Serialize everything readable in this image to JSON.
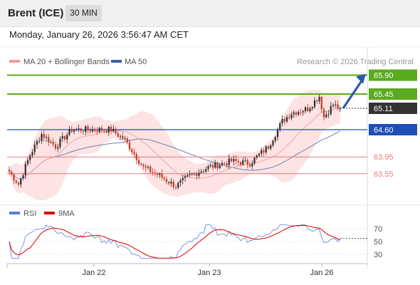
{
  "header": {
    "title": "Brent (ICE)",
    "timeframe": "30 MIN",
    "timestamp": "Monday, January 26, 2026 3:56:47 AM CET"
  },
  "legend": {
    "ma20": "MA 20 + Bollinger Bands",
    "ma50": "MA 50",
    "credit": "Research © 2026 Trading Central",
    "rsi": "RSI",
    "ma9": "9MA"
  },
  "colors": {
    "resistance": "#5aab1e",
    "support": "#1f4fb4",
    "weak": "#e77b7b",
    "candle_up": "#2e2e2e",
    "candle_down": "#c0392b",
    "bb_fill": "#fde3e3",
    "ma20": "#f0a5a5",
    "ma50": "#6b7fb3",
    "arrow": "#2a5aa8",
    "rsi": "#6f8ed8",
    "rsi_ma": "#dd1111",
    "current": "#333333"
  },
  "chart_data": [
    {
      "type": "candlestick",
      "x_ticks": [
        "Jan 22",
        "Jan 23",
        "Jan 26"
      ],
      "levels": [
        {
          "value": 65.9,
          "label": "65.90",
          "style": "resistance"
        },
        {
          "value": 65.45,
          "label": "65.45",
          "style": "resistance"
        },
        {
          "value": 65.11,
          "label": "65.11",
          "style": "current"
        },
        {
          "value": 64.6,
          "label": "64.60",
          "style": "support"
        },
        {
          "value": 63.95,
          "label": "63.95",
          "style": "weak"
        },
        {
          "value": 63.55,
          "label": "63.55",
          "style": "weak"
        }
      ],
      "close_anchors": [
        {
          "i": 0,
          "v": 63.6
        },
        {
          "i": 4,
          "v": 63.3
        },
        {
          "i": 9,
          "v": 64.0
        },
        {
          "i": 14,
          "v": 64.5
        },
        {
          "i": 20,
          "v": 64.2
        },
        {
          "i": 27,
          "v": 64.6
        },
        {
          "i": 35,
          "v": 64.6
        },
        {
          "i": 44,
          "v": 64.6
        },
        {
          "i": 50,
          "v": 64.35
        },
        {
          "i": 58,
          "v": 63.7
        },
        {
          "i": 65,
          "v": 63.5
        },
        {
          "i": 72,
          "v": 63.25
        },
        {
          "i": 78,
          "v": 63.5
        },
        {
          "i": 86,
          "v": 63.7
        },
        {
          "i": 96,
          "v": 63.85
        },
        {
          "i": 104,
          "v": 63.8
        },
        {
          "i": 112,
          "v": 64.2
        },
        {
          "i": 118,
          "v": 64.8
        },
        {
          "i": 122,
          "v": 65.0
        },
        {
          "i": 129,
          "v": 65.1
        },
        {
          "i": 134,
          "v": 65.4
        },
        {
          "i": 136,
          "v": 64.9
        },
        {
          "i": 140,
          "v": 65.2
        },
        {
          "i": 143,
          "v": 65.1
        }
      ],
      "forecast": {
        "from": 65.11,
        "to": 65.9
      }
    },
    {
      "type": "line",
      "title": "RSI",
      "y_ticks": [
        70,
        50,
        30
      ],
      "ylim": [
        20,
        80
      ],
      "current_rsi": 55
    }
  ]
}
